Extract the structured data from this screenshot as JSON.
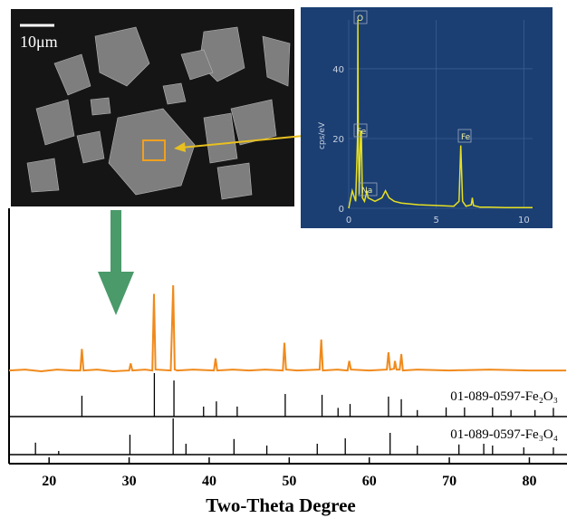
{
  "image": {
    "scale_bar": "10μm"
  },
  "chart_data": [
    {
      "type": "eds",
      "ylabel": "cps/eV",
      "color": "#e8e020",
      "grid": true,
      "xlim": [
        0,
        10.5
      ],
      "ylim": [
        0,
        54
      ],
      "xticks": [
        0,
        5,
        10
      ],
      "yticks": [
        0,
        20,
        40
      ],
      "x": [
        0,
        0.2,
        0.4,
        0.5,
        0.52,
        0.55,
        0.6,
        0.68,
        0.72,
        0.78,
        0.9,
        1.0,
        1.04,
        1.1,
        1.5,
        1.9,
        2.1,
        2.3,
        2.6,
        3,
        4,
        5,
        6,
        6.3,
        6.4,
        6.5,
        6.7,
        7.0,
        7.06,
        7.12,
        7.5,
        8,
        9,
        10,
        10.5
      ],
      "values": [
        0,
        5,
        2,
        20,
        54,
        20,
        4,
        22,
        22,
        3,
        2,
        4,
        5,
        3,
        2,
        3,
        5,
        3,
        2,
        1.5,
        1,
        0.8,
        0.6,
        2,
        18,
        2,
        0.6,
        1,
        3,
        0.8,
        0.3,
        0.3,
        0.2,
        0.2,
        0.2
      ],
      "peak_labels": [
        "O",
        "Fe",
        "Na",
        "Fe"
      ]
    },
    {
      "type": "xrd",
      "xlabel": "Two-Theta Degree",
      "xlim": [
        15,
        84.7
      ],
      "xticks": [
        20,
        30,
        40,
        50,
        60,
        70,
        80
      ],
      "ylim": [
        0,
        100
      ],
      "series": [
        {
          "color": "#f08a1c",
          "x": [
            15,
            17,
            19,
            21,
            23,
            23.9,
            24.1,
            24.3,
            26,
            28,
            30,
            30.2,
            30.4,
            32,
            32.9,
            33.1,
            33.3,
            35.2,
            35.5,
            35.7,
            36,
            38,
            40.6,
            40.8,
            41,
            43,
            45,
            47,
            49.2,
            49.4,
            49.6,
            51,
            53.8,
            54,
            54.2,
            56,
            57.3,
            57.5,
            57.7,
            60,
            62.2,
            62.4,
            62.6,
            63.1,
            63.2,
            63.4,
            63.8,
            64,
            64.2,
            66,
            70,
            75,
            80,
            84.6
          ],
          "values": [
            1,
            2,
            0,
            2,
            1,
            1,
            26,
            1,
            2,
            0,
            1,
            9,
            1,
            2,
            1,
            90,
            2,
            1,
            100,
            2,
            1,
            2,
            1,
            15,
            1,
            2,
            1,
            2,
            1,
            33,
            2,
            1,
            2,
            37,
            1,
            2,
            1,
            12,
            2,
            1,
            2,
            22,
            2,
            3,
            12,
            2,
            2,
            20,
            1,
            2,
            1,
            2,
            1,
            1
          ]
        }
      ],
      "references": [
        {
          "name": "01-089-0597-Fe₂O₃",
          "color": "#000000",
          "x": [
            24.1,
            33.15,
            35.6,
            39.3,
            40.9,
            43.5,
            49.5,
            54.1,
            56.1,
            57.6,
            62.4,
            64,
            66,
            69.6,
            71.9,
            75.4,
            77.7,
            80.7,
            83
          ],
          "values": [
            48,
            100,
            83,
            23,
            35,
            23,
            52,
            50,
            20,
            29,
            46,
            40,
            15,
            21,
            21,
            21,
            15,
            15,
            20
          ]
        },
        {
          "name": "01-089-0597-Fe₃O₄",
          "color": "#000000",
          "x": [
            18.3,
            21.2,
            30.1,
            35.5,
            37.1,
            43.1,
            47.2,
            53.5,
            57,
            62.6,
            66,
            71.2,
            74.3,
            75.4,
            79.3,
            83
          ],
          "values": [
            33,
            10,
            55,
            100,
            30,
            43,
            25,
            30,
            45,
            60,
            25,
            28,
            30,
            25,
            20,
            20
          ]
        }
      ]
    }
  ]
}
